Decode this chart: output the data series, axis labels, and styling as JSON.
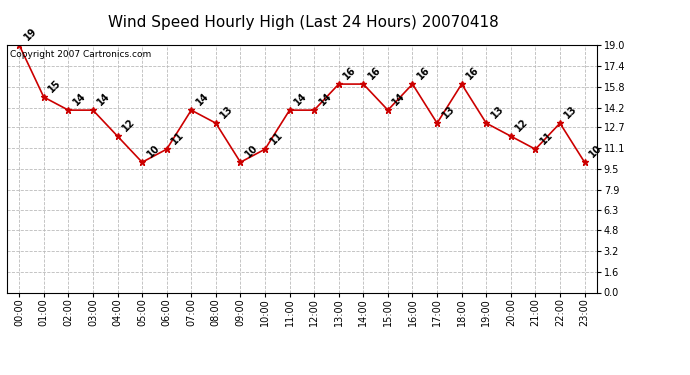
{
  "title": "Wind Speed Hourly High (Last 24 Hours) 20070418",
  "copyright": "Copyright 2007 Cartronics.com",
  "hours": [
    "00:00",
    "01:00",
    "02:00",
    "03:00",
    "04:00",
    "05:00",
    "06:00",
    "07:00",
    "08:00",
    "09:00",
    "10:00",
    "11:00",
    "12:00",
    "13:00",
    "14:00",
    "15:00",
    "16:00",
    "17:00",
    "18:00",
    "19:00",
    "20:00",
    "21:00",
    "22:00",
    "23:00"
  ],
  "values": [
    19,
    15,
    14,
    14,
    12,
    10,
    11,
    14,
    13,
    10,
    11,
    14,
    14,
    16,
    16,
    14,
    16,
    13,
    16,
    13,
    12,
    11,
    13,
    10
  ],
  "line_color": "#cc0000",
  "marker": "*",
  "marker_size": 5,
  "bg_color": "#ffffff",
  "grid_color": "#bbbbbb",
  "yticks": [
    0.0,
    1.6,
    3.2,
    4.8,
    6.3,
    7.9,
    9.5,
    11.1,
    12.7,
    14.2,
    15.8,
    17.4,
    19.0
  ],
  "ymin": 0.0,
  "ymax": 19.0,
  "title_fontsize": 11,
  "label_fontsize": 7,
  "tick_fontsize": 7,
  "copyright_fontsize": 6.5
}
